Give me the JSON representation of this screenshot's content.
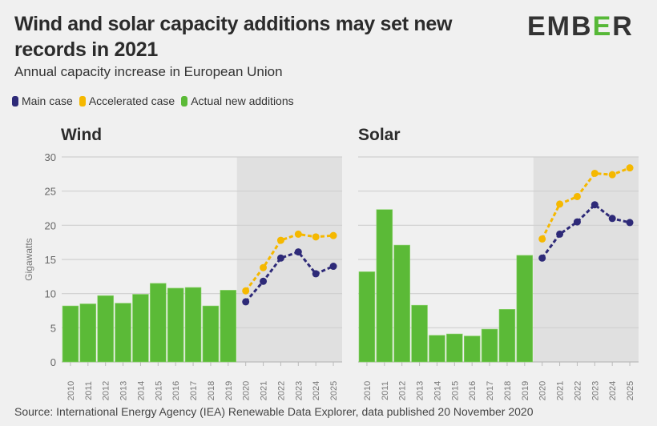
{
  "header": {
    "title": "Wind and solar capacity additions may set new records in 2021",
    "subtitle": "Annual capacity increase in European Union",
    "logo": {
      "pre": "EMB",
      "mid": "E",
      "post": "R"
    }
  },
  "legend": [
    {
      "label": "Main case",
      "color": "#2e2a78"
    },
    {
      "label": "Accelerated case",
      "color": "#f5b800"
    },
    {
      "label": "Actual new additions",
      "color": "#5bba37"
    }
  ],
  "footer": {
    "source": "Source: International Energy Agency (IEA) Renewable Data Explorer, data published 20 November 2020"
  },
  "chart_data": [
    {
      "type": "bar",
      "title": "Wind",
      "ylabel": "Gigawatts",
      "xlabel": "",
      "ylim": [
        0,
        30
      ],
      "yticks": [
        0,
        5,
        10,
        15,
        20,
        25,
        30
      ],
      "grid": true,
      "forecast_shaded_from": "2020",
      "categories": [
        "2010",
        "2011",
        "2012",
        "2013",
        "2014",
        "2015",
        "2016",
        "2017",
        "2018",
        "2019",
        "2020",
        "2021",
        "2022",
        "2023",
        "2024",
        "2025"
      ],
      "series": [
        {
          "name": "Actual new additions",
          "kind": "bar",
          "color": "#5bba37",
          "values": [
            8.2,
            8.5,
            9.7,
            8.6,
            9.9,
            11.5,
            10.8,
            10.9,
            8.2,
            10.5,
            null,
            null,
            null,
            null,
            null,
            null
          ]
        },
        {
          "name": "Main case",
          "kind": "line",
          "color": "#2e2a78",
          "values": [
            null,
            null,
            null,
            null,
            null,
            null,
            null,
            null,
            null,
            null,
            8.8,
            11.8,
            15.2,
            16.1,
            12.9,
            14.0
          ]
        },
        {
          "name": "Accelerated case",
          "kind": "line",
          "color": "#f5b800",
          "values": [
            null,
            null,
            null,
            null,
            null,
            null,
            null,
            null,
            null,
            null,
            10.4,
            13.8,
            17.8,
            18.7,
            18.3,
            18.5
          ]
        }
      ]
    },
    {
      "type": "bar",
      "title": "Solar",
      "ylabel": "",
      "xlabel": "",
      "ylim": [
        0,
        30
      ],
      "yticks": [
        0,
        5,
        10,
        15,
        20,
        25,
        30
      ],
      "grid": true,
      "forecast_shaded_from": "2020",
      "categories": [
        "2010",
        "2011",
        "2012",
        "2013",
        "2014",
        "2015",
        "2016",
        "2017",
        "2018",
        "2019",
        "2020",
        "2021",
        "2022",
        "2023",
        "2024",
        "2025"
      ],
      "series": [
        {
          "name": "Actual new additions",
          "kind": "bar",
          "color": "#5bba37",
          "values": [
            13.2,
            22.3,
            17.1,
            8.3,
            3.9,
            4.1,
            3.8,
            4.8,
            7.7,
            15.6,
            null,
            null,
            null,
            null,
            null,
            null
          ]
        },
        {
          "name": "Main case",
          "kind": "line",
          "color": "#2e2a78",
          "values": [
            null,
            null,
            null,
            null,
            null,
            null,
            null,
            null,
            null,
            null,
            15.2,
            18.7,
            20.5,
            23.0,
            21.0,
            20.4
          ]
        },
        {
          "name": "Accelerated case",
          "kind": "line",
          "color": "#f5b800",
          "values": [
            null,
            null,
            null,
            null,
            null,
            null,
            null,
            null,
            null,
            null,
            18.0,
            23.1,
            24.2,
            27.6,
            27.4,
            28.4
          ]
        }
      ]
    }
  ]
}
